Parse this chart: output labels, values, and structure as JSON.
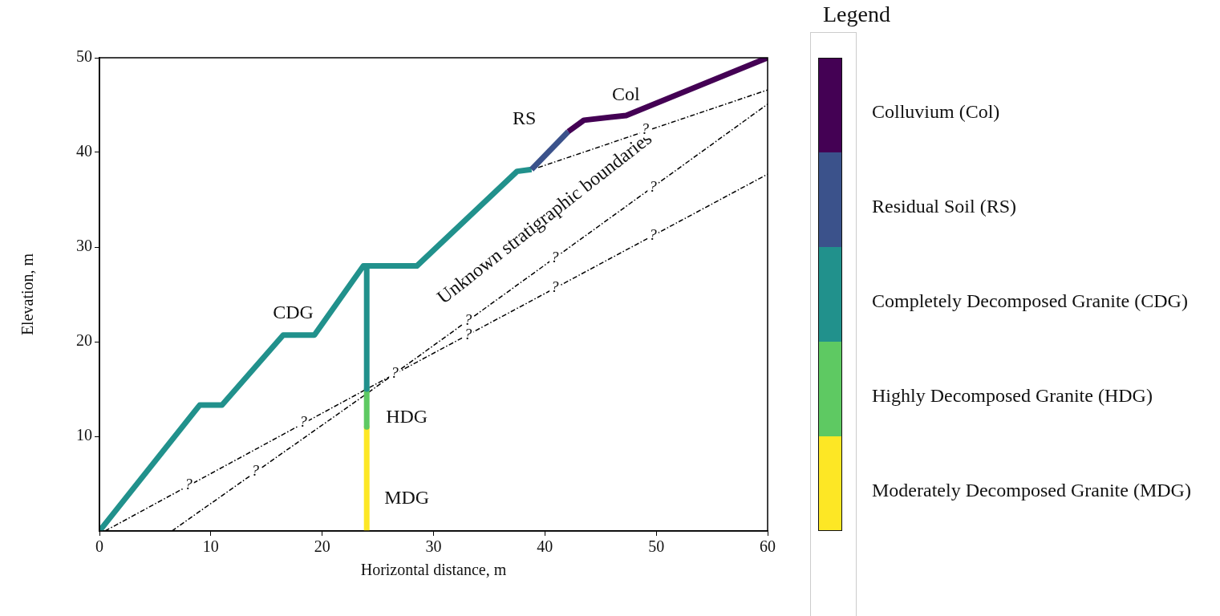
{
  "chart_data": {
    "type": "line",
    "xlabel": "Horizontal distance, m",
    "ylabel": "Elevation, m",
    "legend_title": "Legend",
    "legend": "right",
    "grid": false,
    "marker": "none",
    "xlim": [
      0,
      60
    ],
    "xticks": [
      0,
      10,
      20,
      30,
      40,
      50,
      60
    ],
    "ylim": [
      0,
      50
    ],
    "yticks": [
      10,
      20,
      30,
      40,
      50
    ],
    "series": [
      {
        "name": "Colluvium (Col)",
        "color": "#440154",
        "x": [
          42.1,
          43.5,
          47.3,
          60
        ],
        "values": [
          42.2,
          43.4,
          43.9,
          50
        ]
      },
      {
        "name": "Residual Soil (RS)",
        "color": "#3b528b",
        "x": [
          38.8,
          42.1
        ],
        "values": [
          38.2,
          42.2
        ]
      },
      {
        "name": "Completely Decomposed Granite (CDG)",
        "color": "#21918c",
        "x": [
          0,
          9,
          11,
          16.5,
          19.3,
          23.7,
          24,
          24,
          24,
          28.5,
          37.5,
          38.8
        ],
        "values": [
          0,
          13.3,
          13.3,
          20.7,
          20.7,
          28,
          28,
          15,
          28,
          28,
          38,
          38.2
        ]
      },
      {
        "name": "Highly Decomposed Granite (HDG)",
        "color": "#5ec962",
        "x": [
          24,
          24
        ],
        "values": [
          15,
          11
        ]
      },
      {
        "name": "Moderately Decomposed Granite (MDG)",
        "color": "#fde725",
        "x": [
          24,
          24
        ],
        "values": [
          11,
          0
        ]
      },
      {
        "color": "#000000",
        "line_style": "dashed",
        "x": [
          0.5,
          24,
          60
        ],
        "values": [
          0,
          15,
          37.7
        ]
      },
      {
        "color": "#000000",
        "line_style": "dashed",
        "x": [
          6.5,
          24,
          60
        ],
        "values": [
          0,
          14.5,
          45.1
        ]
      },
      {
        "color": "#000000",
        "line_style": "dashed",
        "x": [
          39.4,
          60
        ],
        "values": [
          38.4,
          46.6
        ]
      }
    ],
    "annotations": [
      "CDG",
      "HDG",
      "MDG",
      "RS",
      "Col",
      "Unknown stratigraphic boundaries",
      {
        "text": "?",
        "x": 8,
        "y": 4.8
      },
      {
        "text": "?",
        "x": 14,
        "y": 6.3
      },
      {
        "text": "?",
        "x": 18.3,
        "y": 11.4
      },
      {
        "text": "?",
        "x": 26.5,
        "y": 16.6
      },
      {
        "text": "?",
        "x": 33.1,
        "y": 22.2
      },
      {
        "text": "?",
        "x": 33.1,
        "y": 20.7
      },
      {
        "text": "?",
        "x": 40.9,
        "y": 28.8
      },
      {
        "text": "?",
        "x": 40.9,
        "y": 25.7
      },
      {
        "text": "?",
        "x": 49.7,
        "y": 36.3
      },
      {
        "text": "?",
        "x": 49.7,
        "y": 31.2
      },
      {
        "text": "?",
        "x": 49,
        "y": 42.4
      }
    ]
  }
}
